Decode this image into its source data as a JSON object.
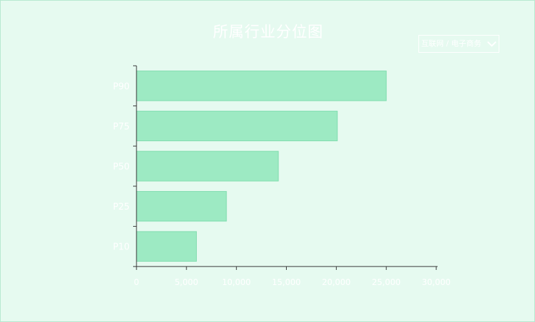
{
  "title": "所属行业分位图",
  "industry_select": {
    "selected": "互联网 / 电子商务",
    "icon": "chevron-down-icon"
  },
  "chart_data": {
    "type": "bar",
    "orientation": "horizontal",
    "categories": [
      "P10",
      "P25",
      "P50",
      "P75",
      "P90"
    ],
    "values": [
      6000,
      9000,
      14200,
      20100,
      25000
    ],
    "title": "所属行业分位图",
    "xlabel": "",
    "ylabel": "",
    "xlim": [
      0,
      30000
    ],
    "xticks": [
      "0",
      "5,000",
      "10,000",
      "15,000",
      "20,000",
      "25,000",
      "30,000"
    ],
    "grid": false,
    "legend": "none",
    "colors": {
      "bar_fill": "#9deac3",
      "bar_stroke": "#7fdcae",
      "text": "#ffffff",
      "axis": "#333333",
      "background": "#e6faf0"
    }
  }
}
